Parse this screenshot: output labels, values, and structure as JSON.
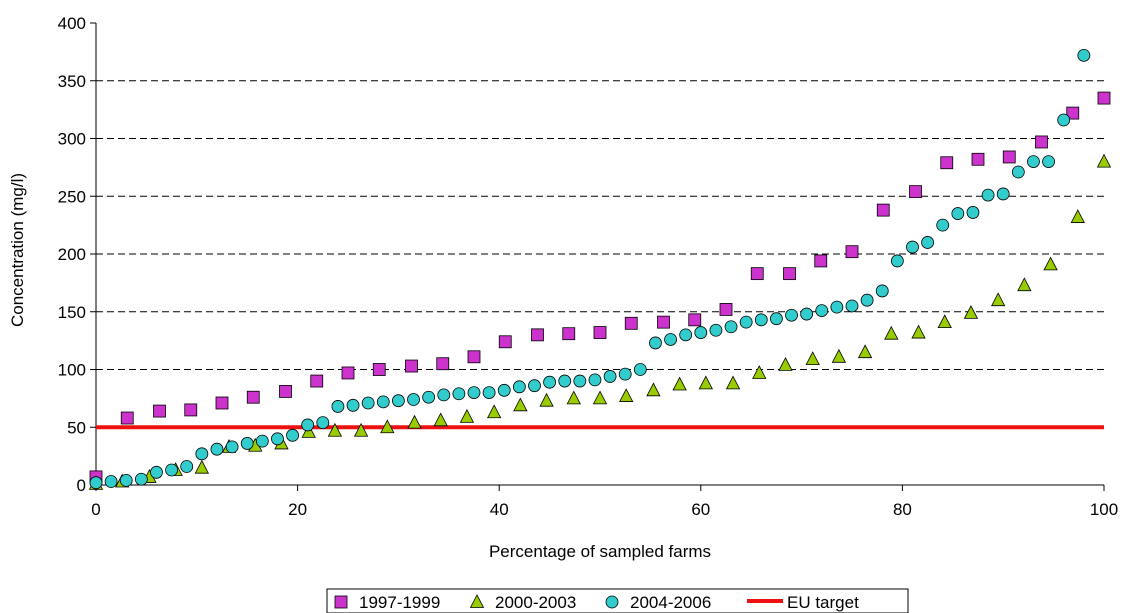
{
  "chart_data": {
    "type": "scatter",
    "xlabel": "Percentage of sampled farms",
    "ylabel": "Concentration (mg/l)",
    "xlim": [
      0,
      100
    ],
    "ylim": [
      0,
      400
    ],
    "x_ticks": [
      "0",
      "20",
      "40",
      "60",
      "80",
      "100"
    ],
    "y_ticks": [
      "0",
      "50",
      "100",
      "150",
      "200",
      "250",
      "300",
      "350",
      "400"
    ],
    "grid": "horizontal dashed",
    "legend_position": "bottom",
    "series": [
      {
        "name": "1997-1999",
        "marker": "square",
        "color": "#cc33cc",
        "points": [
          [
            0,
            7
          ],
          [
            3.1,
            58
          ],
          [
            6.3,
            64
          ],
          [
            9.4,
            65
          ],
          [
            12.5,
            71
          ],
          [
            15.6,
            76
          ],
          [
            18.8,
            81
          ],
          [
            21.9,
            90
          ],
          [
            25,
            97
          ],
          [
            28.1,
            100
          ],
          [
            31.3,
            103
          ],
          [
            34.4,
            105
          ],
          [
            37.5,
            111
          ],
          [
            40.6,
            124
          ],
          [
            43.8,
            130
          ],
          [
            46.9,
            131
          ],
          [
            50,
            132
          ],
          [
            53.1,
            140
          ],
          [
            56.3,
            141
          ],
          [
            59.4,
            143
          ],
          [
            62.5,
            152
          ],
          [
            65.6,
            183
          ],
          [
            68.8,
            183
          ],
          [
            71.9,
            194
          ],
          [
            75,
            202
          ],
          [
            78.1,
            238
          ],
          [
            81.3,
            254
          ],
          [
            84.4,
            279
          ],
          [
            87.5,
            282
          ],
          [
            90.6,
            284
          ],
          [
            93.8,
            297
          ],
          [
            96.9,
            322
          ],
          [
            100,
            335
          ]
        ]
      },
      {
        "name": "2000-2003",
        "marker": "triangle",
        "color": "#99cc00",
        "points": [
          [
            0,
            1
          ],
          [
            2.6,
            3
          ],
          [
            5.3,
            7
          ],
          [
            7.9,
            13
          ],
          [
            10.5,
            15
          ],
          [
            13.2,
            33
          ],
          [
            15.8,
            34
          ],
          [
            18.4,
            36
          ],
          [
            21.1,
            46
          ],
          [
            23.7,
            47
          ],
          [
            26.3,
            47
          ],
          [
            28.9,
            50
          ],
          [
            31.6,
            54
          ],
          [
            34.2,
            56
          ],
          [
            36.8,
            59
          ],
          [
            39.5,
            63
          ],
          [
            42.1,
            69
          ],
          [
            44.7,
            73
          ],
          [
            47.4,
            75
          ],
          [
            50,
            75
          ],
          [
            52.6,
            77
          ],
          [
            55.3,
            82
          ],
          [
            57.9,
            87
          ],
          [
            60.5,
            88
          ],
          [
            63.2,
            88
          ],
          [
            65.8,
            97
          ],
          [
            68.4,
            104
          ],
          [
            71.1,
            109
          ],
          [
            73.7,
            111
          ],
          [
            76.3,
            115
          ],
          [
            78.9,
            131
          ],
          [
            81.6,
            132
          ],
          [
            84.2,
            141
          ],
          [
            86.8,
            149
          ],
          [
            89.5,
            160
          ],
          [
            92.1,
            173
          ],
          [
            94.7,
            191
          ],
          [
            97.4,
            232
          ],
          [
            100,
            280
          ]
        ]
      },
      {
        "name": "2004-2006",
        "marker": "circle",
        "color": "#33cccc",
        "points": [
          [
            0,
            2
          ],
          [
            1.5,
            3
          ],
          [
            3,
            4
          ],
          [
            4.5,
            5
          ],
          [
            6,
            11
          ],
          [
            7.5,
            13
          ],
          [
            9,
            16
          ],
          [
            10.5,
            27
          ],
          [
            12,
            31
          ],
          [
            13.5,
            33
          ],
          [
            15,
            36
          ],
          [
            16.5,
            38
          ],
          [
            18,
            40
          ],
          [
            19.5,
            43
          ],
          [
            21,
            52
          ],
          [
            22.5,
            54
          ],
          [
            24,
            68
          ],
          [
            25.5,
            69
          ],
          [
            27,
            71
          ],
          [
            28.5,
            72
          ],
          [
            30,
            73
          ],
          [
            31.5,
            74
          ],
          [
            33,
            76
          ],
          [
            34.5,
            78
          ],
          [
            36,
            79
          ],
          [
            37.5,
            80
          ],
          [
            39,
            80
          ],
          [
            40.5,
            82
          ],
          [
            42,
            85
          ],
          [
            43.5,
            86
          ],
          [
            45,
            89
          ],
          [
            46.5,
            90
          ],
          [
            48,
            90
          ],
          [
            49.5,
            91
          ],
          [
            51,
            94
          ],
          [
            52.5,
            96
          ],
          [
            54,
            100
          ],
          [
            55.5,
            123
          ],
          [
            57,
            126
          ],
          [
            58.5,
            130
          ],
          [
            60,
            132
          ],
          [
            61.5,
            134
          ],
          [
            63,
            137
          ],
          [
            64.5,
            141
          ],
          [
            66,
            143
          ],
          [
            67.5,
            144
          ],
          [
            69,
            147
          ],
          [
            70.5,
            148
          ],
          [
            72,
            151
          ],
          [
            73.5,
            154
          ],
          [
            75,
            155
          ],
          [
            76.5,
            160
          ],
          [
            78,
            168
          ],
          [
            79.5,
            194
          ],
          [
            81,
            206
          ],
          [
            82.5,
            210
          ],
          [
            84,
            225
          ],
          [
            85.5,
            235
          ],
          [
            87,
            236
          ],
          [
            88.5,
            251
          ],
          [
            90,
            252
          ],
          [
            91.5,
            271
          ],
          [
            93,
            280
          ],
          [
            94.5,
            280
          ],
          [
            96,
            316
          ],
          [
            98,
            372
          ]
        ]
      },
      {
        "name": "EU target",
        "marker": "line",
        "color": "#ee1111",
        "points": [
          [
            0,
            50
          ],
          [
            100,
            50
          ]
        ]
      }
    ]
  }
}
